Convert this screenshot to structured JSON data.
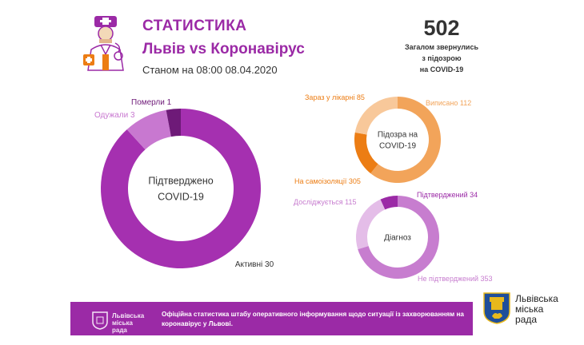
{
  "header": {
    "title": "СТАТИСТИКА",
    "subtitle": "Львів vs Коронавірус",
    "date_line": "Станом на 08:00 08.04.2020"
  },
  "total": {
    "value": "502",
    "caption_lines": [
      "Загалом звернулись",
      "з підозрою",
      "на COVID-19"
    ]
  },
  "chart_data": [
    {
      "type": "pie",
      "variant": "donut",
      "center_label": [
        "Підтверджено",
        "COVID-19"
      ],
      "slices": [
        {
          "label": "Активні",
          "value": 30,
          "color": "#a530b0",
          "display": "Активні 30"
        },
        {
          "label": "Одужали",
          "value": 3,
          "color": "#c878d0",
          "display": "Одужали 3"
        },
        {
          "label": "Померли",
          "value": 1,
          "color": "#6e1a78",
          "display": "Померли 1"
        }
      ]
    },
    {
      "type": "pie",
      "variant": "donut",
      "center_label": [
        "Підозра на",
        "COVID-19"
      ],
      "slices": [
        {
          "label": "На самоізоляції",
          "value": 305,
          "color": "#f2a45a",
          "display": "На самоізоляції 305"
        },
        {
          "label": "Зараз у лікарні",
          "value": 85,
          "color": "#ec7d14",
          "display": "Зараз у лікарні 85"
        },
        {
          "label": "Виписано",
          "value": 112,
          "color": "#f8c89a",
          "display": "Виписано 112"
        }
      ]
    },
    {
      "type": "pie",
      "variant": "donut",
      "center_label": [
        "Діагноз"
      ],
      "slices": [
        {
          "label": "Не підтверджений",
          "value": 353,
          "color": "#c77dcf",
          "display": "Не підтверджений 353"
        },
        {
          "label": "Досліджується",
          "value": 115,
          "color": "#e4bde8",
          "display": "Досліджується 115"
        },
        {
          "label": "Підтверджений",
          "value": 34,
          "color": "#9b2aa6",
          "display": "Підтверджений 34"
        }
      ]
    }
  ],
  "footer": {
    "logo_lines": [
      "Львівська",
      "міська",
      "рада"
    ],
    "text": "Офіційна статистика штабу оперативного інформування щодо ситуації із захворюванням на коронавірус у Львові."
  },
  "city": {
    "lines": [
      "Львівська",
      "міська",
      "рада"
    ]
  },
  "colors": {
    "brand_purple": "#9b2aa6",
    "accent_orange": "#ec7d14",
    "city_blue": "#1f4e9a",
    "city_gold": "#e8b81c"
  },
  "icons": [
    "doctor-icon",
    "coat-of-arms-icon",
    "footer-emblem-icon"
  ]
}
